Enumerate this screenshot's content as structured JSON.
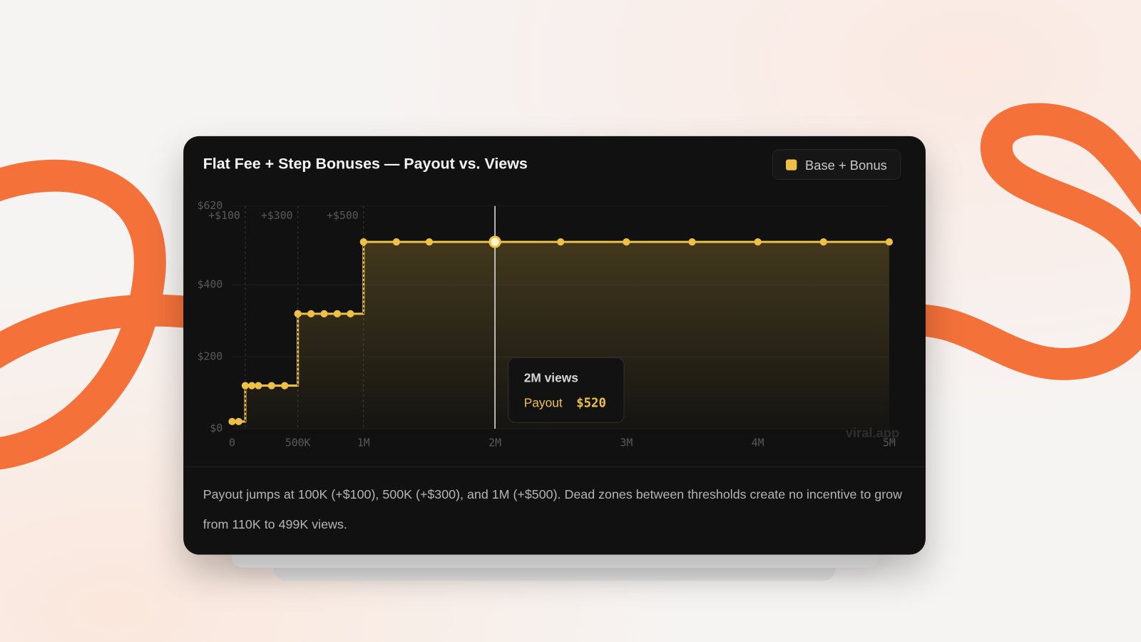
{
  "chart_data": {
    "type": "line",
    "step": "after",
    "title": "Flat Fee + Step Bonuses — Payout vs. Views",
    "x": [
      0,
      50000,
      100000,
      150000,
      200000,
      300000,
      400000,
      500000,
      600000,
      700000,
      800000,
      900000,
      1000000,
      1250000,
      1500000,
      2000000,
      2500000,
      3000000,
      3500000,
      4000000,
      4500000,
      5000000
    ],
    "series": [
      {
        "name": "Base + Bonus",
        "color": "#eec146",
        "values": [
          20,
          20,
          120,
          120,
          120,
          120,
          120,
          320,
          320,
          320,
          320,
          320,
          520,
          520,
          520,
          520,
          520,
          520,
          520,
          520,
          520,
          520
        ]
      }
    ],
    "xlim": [
      0,
      5000000
    ],
    "ylim": [
      0,
      620
    ],
    "xticks": [
      0,
      {
        "value": 500000,
        "label": "500K"
      },
      {
        "value": 1000000,
        "label": "1M"
      },
      {
        "value": 2000000,
        "label": "2M"
      },
      {
        "value": 3000000,
        "label": "3M"
      },
      {
        "value": 4000000,
        "label": "4M"
      },
      {
        "value": 5000000,
        "label": "5M"
      }
    ],
    "yticks": [
      {
        "value": 0,
        "label": "$0"
      },
      {
        "value": 200,
        "label": "$200"
      },
      {
        "value": 400,
        "label": "$400"
      },
      {
        "value": 620,
        "label": "$620"
      }
    ],
    "grid": true,
    "legend": "top-right",
    "thresholds": [
      {
        "x": 100000,
        "label": "+$100"
      },
      {
        "x": 500000,
        "label": "+$300"
      },
      {
        "x": 1000000,
        "label": "+$500"
      }
    ],
    "tooltip": {
      "x": 2000000,
      "title": "2M views",
      "label": "Payout",
      "value": 520,
      "value_label": "$520"
    },
    "watermark": "viral.app",
    "caption": "Payout jumps at 100K (+$100), 500K (+$300), and 1M (+$500). Dead zones between thresholds create no incentive to grow from 110K to 499K views."
  }
}
